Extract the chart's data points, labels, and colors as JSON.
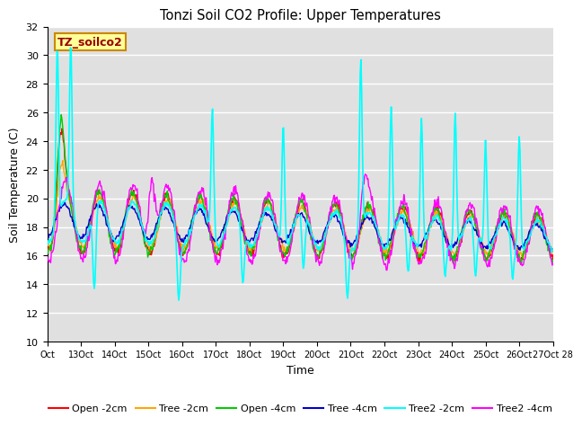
{
  "title": "Tonzi Soil CO2 Profile: Upper Temperatures",
  "xlabel": "Time",
  "ylabel": "Soil Temperature (C)",
  "ylim": [
    10,
    32
  ],
  "yticks": [
    10,
    12,
    14,
    16,
    18,
    20,
    22,
    24,
    26,
    28,
    30,
    32
  ],
  "background_color": "#ffffff",
  "plot_bg_color": "#e0e0e0",
  "series": {
    "Open -2cm": {
      "color": "#ff0000",
      "lw": 1.0
    },
    "Tree -2cm": {
      "color": "#ffa500",
      "lw": 1.0
    },
    "Open -4cm": {
      "color": "#00cc00",
      "lw": 1.0
    },
    "Tree -4cm": {
      "color": "#0000cc",
      "lw": 1.0
    },
    "Tree2 -2cm": {
      "color": "#00ffff",
      "lw": 1.2
    },
    "Tree2 -4cm": {
      "color": "#ff00ff",
      "lw": 1.0
    }
  },
  "watermark_text": "TZ_soilco2",
  "watermark_bg": "#ffff99",
  "watermark_border": "#cc8800",
  "xtick_labels": [
    "Oct",
    "13Oct",
    "14Oct",
    "15Oct",
    "16Oct",
    "17Oct",
    "18Oct",
    "19Oct",
    "20Oct",
    "21Oct",
    "22Oct",
    "23Oct",
    "24Oct",
    "25Oct",
    "26Oct",
    "27Oct 28"
  ]
}
